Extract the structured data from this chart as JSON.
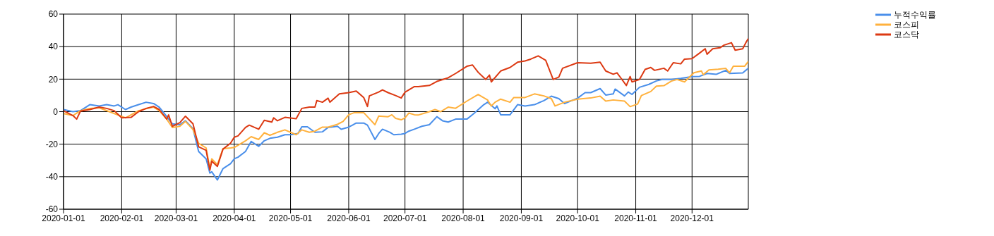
{
  "chart_data": {
    "type": "line",
    "xlim": [
      "2020-01-01",
      "2020-12-31"
    ],
    "xticks": [
      "2020-01-01",
      "2020-02-01",
      "2020-03-01",
      "2020-04-01",
      "2020-05-01",
      "2020-06-01",
      "2020-07-01",
      "2020-08-01",
      "2020-09-01",
      "2020-10-01",
      "2020-11-01",
      "2020-12-01"
    ],
    "ylim": [
      -60,
      60
    ],
    "yticks": [
      -60,
      -40,
      -20,
      0,
      20,
      40,
      60
    ],
    "grid": true,
    "legend": "top right",
    "marker": "none",
    "line_style": "solid",
    "series": [
      {
        "name": "누적수익률",
        "color": "#4a8fea",
        "x": [
          "2020-01-01",
          "2020-01-06",
          "2020-01-10",
          "2020-01-15",
          "2020-01-20",
          "2020-01-24",
          "2020-01-28",
          "2020-01-30",
          "2020-02-03",
          "2020-02-06",
          "2020-02-10",
          "2020-02-14",
          "2020-02-18",
          "2020-02-21",
          "2020-02-25",
          "2020-02-28",
          "2020-03-03",
          "2020-03-06",
          "2020-03-10",
          "2020-03-13",
          "2020-03-17",
          "2020-03-19",
          "2020-03-20",
          "2020-03-23",
          "2020-03-26",
          "2020-03-30",
          "2020-04-01",
          "2020-04-03",
          "2020-04-07",
          "2020-04-10",
          "2020-04-14",
          "2020-04-17",
          "2020-04-20",
          "2020-04-24",
          "2020-04-28",
          "2020-05-01",
          "2020-05-05",
          "2020-05-07",
          "2020-05-10",
          "2020-05-14",
          "2020-05-18",
          "2020-05-21",
          "2020-05-26",
          "2020-05-28",
          "2020-06-01",
          "2020-06-03",
          "2020-06-05",
          "2020-06-09",
          "2020-06-11",
          "2020-06-15",
          "2020-06-17",
          "2020-06-19",
          "2020-06-23",
          "2020-06-25",
          "2020-06-29",
          "2020-07-01",
          "2020-07-03",
          "2020-07-06",
          "2020-07-10",
          "2020-07-14",
          "2020-07-18",
          "2020-07-21",
          "2020-07-24",
          "2020-07-28",
          "2020-08-03",
          "2020-08-07",
          "2020-08-12",
          "2020-08-14",
          "2020-08-18",
          "2020-08-19",
          "2020-08-21",
          "2020-08-26",
          "2020-08-30",
          "2020-09-03",
          "2020-09-08",
          "2020-09-13",
          "2020-09-17",
          "2020-09-21",
          "2020-09-24",
          "2020-10-01",
          "2020-10-05",
          "2020-10-08",
          "2020-10-13",
          "2020-10-16",
          "2020-10-20",
          "2020-10-21",
          "2020-10-26",
          "2020-10-28",
          "2020-10-30",
          "2020-11-03",
          "2020-11-08",
          "2020-11-12",
          "2020-11-15",
          "2020-11-20",
          "2020-11-25",
          "2020-12-01",
          "2020-12-05",
          "2020-12-09",
          "2020-12-14",
          "2020-12-19",
          "2020-12-21",
          "2020-12-28",
          "2020-12-31"
        ],
        "values": [
          1.3,
          0,
          0.6,
          4.3,
          3.5,
          4.3,
          3.5,
          4.3,
          1.3,
          2.8,
          4.3,
          5.8,
          5,
          2.8,
          -3,
          -7.5,
          -8,
          -5.6,
          -10.5,
          -24.5,
          -29,
          -37.8,
          -37,
          -42,
          -35,
          -32,
          -29,
          -28,
          -24.5,
          -18.3,
          -21.3,
          -17.9,
          -16.4,
          -15.7,
          -14.2,
          -14.2,
          -13.4,
          -9.3,
          -9.3,
          -12.7,
          -12.4,
          -9.7,
          -9,
          -10.8,
          -9.5,
          -8.3,
          -7,
          -7,
          -8.3,
          -17.1,
          -13.4,
          -10.8,
          -12.7,
          -14.2,
          -13.9,
          -13.4,
          -12,
          -10.8,
          -9,
          -8,
          -3.1,
          -5.6,
          -6.4,
          -4.6,
          -4.6,
          -0.9,
          4.3,
          5.8,
          1.8,
          3.5,
          -1.9,
          -1.9,
          4.3,
          3.5,
          4.3,
          6.8,
          9.5,
          8,
          5,
          8.3,
          11.7,
          11.7,
          14.2,
          10.2,
          10.9,
          13.9,
          9.7,
          12.1,
          10.6,
          15,
          16.8,
          18.9,
          19.8,
          19.8,
          20.5,
          21.6,
          21.7,
          23.5,
          23,
          25.4,
          23.5,
          23.8,
          26.7
        ]
      },
      {
        "name": "코스피",
        "color": "#ffb13d",
        "x": [
          "2020-01-01",
          "2020-01-06",
          "2020-01-10",
          "2020-01-15",
          "2020-01-20",
          "2020-02-03",
          "2020-02-10",
          "2020-02-14",
          "2020-02-18",
          "2020-02-21",
          "2020-02-25",
          "2020-02-28",
          "2020-03-03",
          "2020-03-06",
          "2020-03-10",
          "2020-03-13",
          "2020-03-17",
          "2020-03-19",
          "2020-03-20",
          "2020-03-23",
          "2020-03-26",
          "2020-03-30",
          "2020-04-01",
          "2020-04-07",
          "2020-04-10",
          "2020-04-14",
          "2020-04-17",
          "2020-04-20",
          "2020-04-24",
          "2020-04-28",
          "2020-05-04",
          "2020-05-07",
          "2020-05-11",
          "2020-05-14",
          "2020-05-18",
          "2020-05-21",
          "2020-05-26",
          "2020-05-29",
          "2020-06-01",
          "2020-06-04",
          "2020-06-09",
          "2020-06-15",
          "2020-06-17",
          "2020-06-22",
          "2020-06-24",
          "2020-06-26",
          "2020-06-29",
          "2020-07-01",
          "2020-07-03",
          "2020-07-06",
          "2020-07-08",
          "2020-07-14",
          "2020-07-17",
          "2020-07-20",
          "2020-07-24",
          "2020-07-28",
          "2020-08-03",
          "2020-08-09",
          "2020-08-14",
          "2020-08-16",
          "2020-08-18",
          "2020-08-21",
          "2020-08-26",
          "2020-08-28",
          "2020-09-03",
          "2020-09-08",
          "2020-09-13",
          "2020-09-17",
          "2020-09-19",
          "2020-09-24",
          "2020-10-01",
          "2020-10-08",
          "2020-10-13",
          "2020-10-16",
          "2020-10-20",
          "2020-10-26",
          "2020-10-29",
          "2020-11-02",
          "2020-11-04",
          "2020-11-09",
          "2020-11-12",
          "2020-11-16",
          "2020-11-20",
          "2020-11-23",
          "2020-11-27",
          "2020-12-02",
          "2020-12-06",
          "2020-12-07",
          "2020-12-10",
          "2020-12-15",
          "2020-12-19",
          "2020-12-21",
          "2020-12-23",
          "2020-12-29",
          "2020-12-31"
        ],
        "values": [
          -1.2,
          -2.4,
          0.6,
          2,
          2.4,
          -3.8,
          0.6,
          1.8,
          2.8,
          0.6,
          -4.6,
          -9.7,
          -9,
          -6,
          -11,
          -19.4,
          -22.3,
          -35,
          -29,
          -32.6,
          -22.7,
          -22.3,
          -22,
          -17.9,
          -15.4,
          -17.1,
          -13,
          -14.5,
          -12.7,
          -11.2,
          -14.2,
          -11.2,
          -12.7,
          -12,
          -9.5,
          -9.5,
          -7.8,
          -6,
          -1.9,
          -0.6,
          -0.6,
          -8,
          -2.7,
          -3.1,
          -1.9,
          -4.1,
          -5,
          -3.8,
          -0.9,
          -1.9,
          -2.1,
          0,
          1.3,
          0,
          2.8,
          2.1,
          6.5,
          10.6,
          7.2,
          3.5,
          5.8,
          7.7,
          5.8,
          8.7,
          8.7,
          10.9,
          9.7,
          8,
          3.5,
          5.8,
          7.7,
          8.4,
          9.5,
          6.5,
          7.2,
          6.5,
          3.1,
          4.7,
          9.9,
          12.4,
          15.7,
          16,
          18.8,
          19.8,
          18.3,
          23.9,
          25,
          22.7,
          25.7,
          26.1,
          26.6,
          23.9,
          27.9,
          27.9,
          30.9
        ]
      },
      {
        "name": "코스닥",
        "color": "#dc3912",
        "x": [
          "2020-01-01",
          "2020-01-06",
          "2020-01-08",
          "2020-01-10",
          "2020-01-15",
          "2020-01-20",
          "2020-01-24",
          "2020-01-28",
          "2020-02-01",
          "2020-02-06",
          "2020-02-10",
          "2020-02-14",
          "2020-02-18",
          "2020-02-21",
          "2020-02-25",
          "2020-02-26",
          "2020-02-28",
          "2020-03-03",
          "2020-03-06",
          "2020-03-10",
          "2020-03-13",
          "2020-03-17",
          "2020-03-19",
          "2020-03-20",
          "2020-03-23",
          "2020-03-26",
          "2020-03-30",
          "2020-04-01",
          "2020-04-03",
          "2020-04-07",
          "2020-04-09",
          "2020-04-14",
          "2020-04-17",
          "2020-04-21",
          "2020-04-22",
          "2020-04-24",
          "2020-04-28",
          "2020-05-04",
          "2020-05-07",
          "2020-05-11",
          "2020-05-14",
          "2020-05-15",
          "2020-05-18",
          "2020-05-21",
          "2020-05-22",
          "2020-05-27",
          "2020-06-01",
          "2020-06-05",
          "2020-06-09",
          "2020-06-11",
          "2020-06-12",
          "2020-06-17",
          "2020-06-19",
          "2020-06-22",
          "2020-06-26",
          "2020-06-29",
          "2020-07-01",
          "2020-07-06",
          "2020-07-08",
          "2020-07-14",
          "2020-07-18",
          "2020-07-24",
          "2020-07-28",
          "2020-08-03",
          "2020-08-06",
          "2020-08-09",
          "2020-08-13",
          "2020-08-15",
          "2020-08-16",
          "2020-08-21",
          "2020-08-26",
          "2020-08-30",
          "2020-09-03",
          "2020-09-06",
          "2020-09-10",
          "2020-09-14",
          "2020-09-18",
          "2020-09-21",
          "2020-09-23",
          "2020-10-01",
          "2020-10-08",
          "2020-10-13",
          "2020-10-16",
          "2020-10-20",
          "2020-10-22",
          "2020-10-24",
          "2020-10-27",
          "2020-10-29",
          "2020-10-30",
          "2020-11-03",
          "2020-11-06",
          "2020-11-09",
          "2020-11-11",
          "2020-11-16",
          "2020-11-18",
          "2020-11-21",
          "2020-11-25",
          "2020-11-27",
          "2020-12-01",
          "2020-12-05",
          "2020-12-08",
          "2020-12-09",
          "2020-12-12",
          "2020-12-16",
          "2020-12-18",
          "2020-12-22",
          "2020-12-24",
          "2020-12-28",
          "2020-12-30",
          "2020-12-31"
        ],
        "values": [
          0.6,
          -2.4,
          -4.6,
          0.3,
          1.3,
          2.8,
          2,
          0.6,
          -3.8,
          -3.5,
          0,
          2,
          3.2,
          1.3,
          -4.6,
          -2,
          -9,
          -6.8,
          -2.8,
          -7.5,
          -21.6,
          -23.8,
          -36,
          -30.4,
          -33.7,
          -23,
          -19.4,
          -15.7,
          -14.9,
          -9.7,
          -8.3,
          -10.8,
          -5.3,
          -6.4,
          -3.8,
          -5.6,
          -3.5,
          -4.3,
          2,
          2.8,
          2.8,
          6.8,
          5.8,
          8.3,
          5.8,
          10.9,
          11.7,
          12.7,
          8.7,
          3.2,
          9.7,
          12.1,
          13.4,
          11.7,
          9.9,
          8.4,
          12,
          15.4,
          15.4,
          16.1,
          18.6,
          20.8,
          23.5,
          27.9,
          28.7,
          24.2,
          19.8,
          22.5,
          18.3,
          25,
          27.2,
          30.4,
          31.2,
          32.3,
          34.3,
          31.6,
          19.8,
          21.3,
          26.7,
          30.1,
          29.8,
          30.4,
          25,
          23,
          23.9,
          20.8,
          16.1,
          21.6,
          18.3,
          19.8,
          26,
          27.2,
          25.4,
          26.7,
          25,
          30.1,
          29.4,
          32.3,
          32.6,
          36,
          38.7,
          35.3,
          38.7,
          39.3,
          40.9,
          42.4,
          37.8,
          38.7,
          43.1,
          44.9
        ]
      }
    ]
  }
}
